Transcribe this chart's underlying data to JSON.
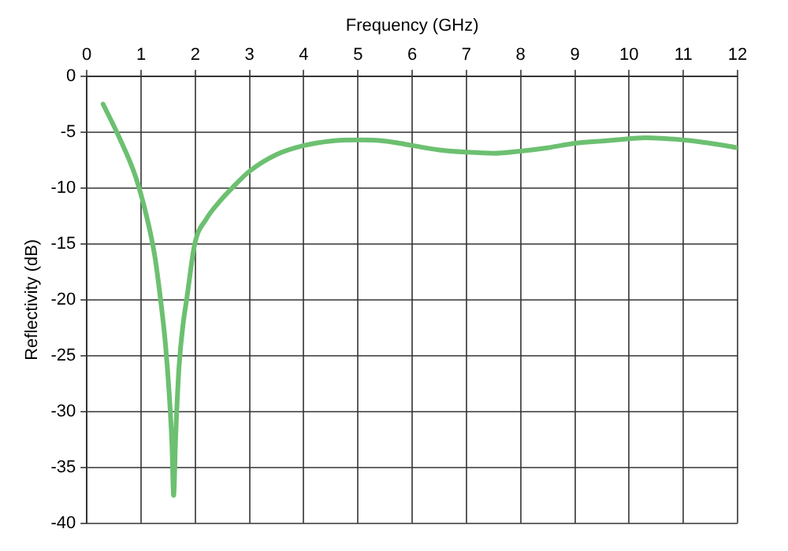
{
  "chart_data": {
    "type": "line",
    "xlabel": "Frequency (GHz)",
    "ylabel": "Reflectivity (dB)",
    "xlim": [
      0,
      12
    ],
    "xticks": [
      0,
      1,
      2,
      3,
      4,
      5,
      6,
      7,
      8,
      9,
      10,
      11,
      12
    ],
    "ylim": [
      -40,
      0
    ],
    "yticks": [
      0,
      -5,
      -10,
      -15,
      -20,
      -25,
      -30,
      -35,
      -40
    ],
    "grid": true,
    "legend": false,
    "marker": "none",
    "line_style": "solid",
    "series": [
      {
        "color": "#6cc070",
        "x": [
          0.3,
          0.6,
          0.9,
          1.1,
          1.25,
          1.36,
          1.45,
          1.52,
          1.57,
          1.6,
          1.64,
          1.7,
          1.78,
          1.84,
          1.99,
          2.2,
          2.45,
          2.68,
          3.0,
          3.5,
          4.0,
          4.5,
          5.0,
          5.5,
          6.0,
          6.5,
          7.0,
          7.5,
          8.0,
          8.5,
          9.0,
          9.5,
          10.0,
          10.3,
          10.7,
          11.0,
          11.5,
          12.0
        ],
        "values": [
          -2.5,
          -5.5,
          -9.0,
          -12.5,
          -16.0,
          -20.0,
          -24.0,
          -28.5,
          -33.0,
          -37.5,
          -32.0,
          -26.0,
          -22.0,
          -20.0,
          -15.0,
          -12.8,
          -11.2,
          -10.0,
          -8.5,
          -7.0,
          -6.2,
          -5.8,
          -5.7,
          -5.8,
          -6.2,
          -6.6,
          -6.8,
          -6.9,
          -6.7,
          -6.4,
          -6.0,
          -5.8,
          -5.6,
          -5.5,
          -5.6,
          -5.7,
          -6.0,
          -6.4
        ]
      }
    ]
  }
}
